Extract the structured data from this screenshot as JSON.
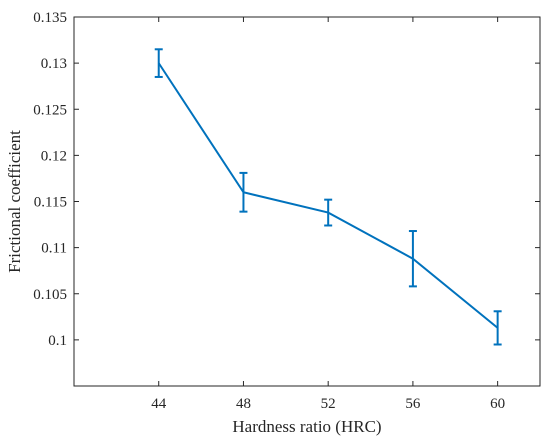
{
  "chart_data": {
    "type": "line",
    "xlabel": "Hardness ratio (HRC)",
    "ylabel": "Frictional coefficient",
    "x": [
      44,
      48,
      52,
      56,
      60
    ],
    "xlim": [
      40,
      62
    ],
    "ylim": [
      0.095,
      0.135
    ],
    "x_ticks": [
      44,
      48,
      52,
      56,
      60
    ],
    "y_ticks": [
      0.1,
      0.105,
      0.11,
      0.115,
      0.12,
      0.125,
      0.13,
      0.135
    ],
    "x_tick_labels": [
      "44",
      "48",
      "52",
      "56",
      "60"
    ],
    "y_tick_labels": [
      "0.1",
      "0.105",
      "0.11",
      "0.115",
      "0.12",
      "0.125",
      "0.13",
      "0.135"
    ],
    "grid": false,
    "box": true,
    "series": [
      {
        "values": [
          0.13,
          0.116,
          0.1138,
          0.1088,
          0.1013
        ],
        "err_low": [
          0.1285,
          0.1139,
          0.1124,
          0.1058,
          0.0995
        ],
        "err_high": [
          0.1315,
          0.1181,
          0.1152,
          0.1118,
          0.1031
        ],
        "color": "#0072BD"
      }
    ]
  }
}
